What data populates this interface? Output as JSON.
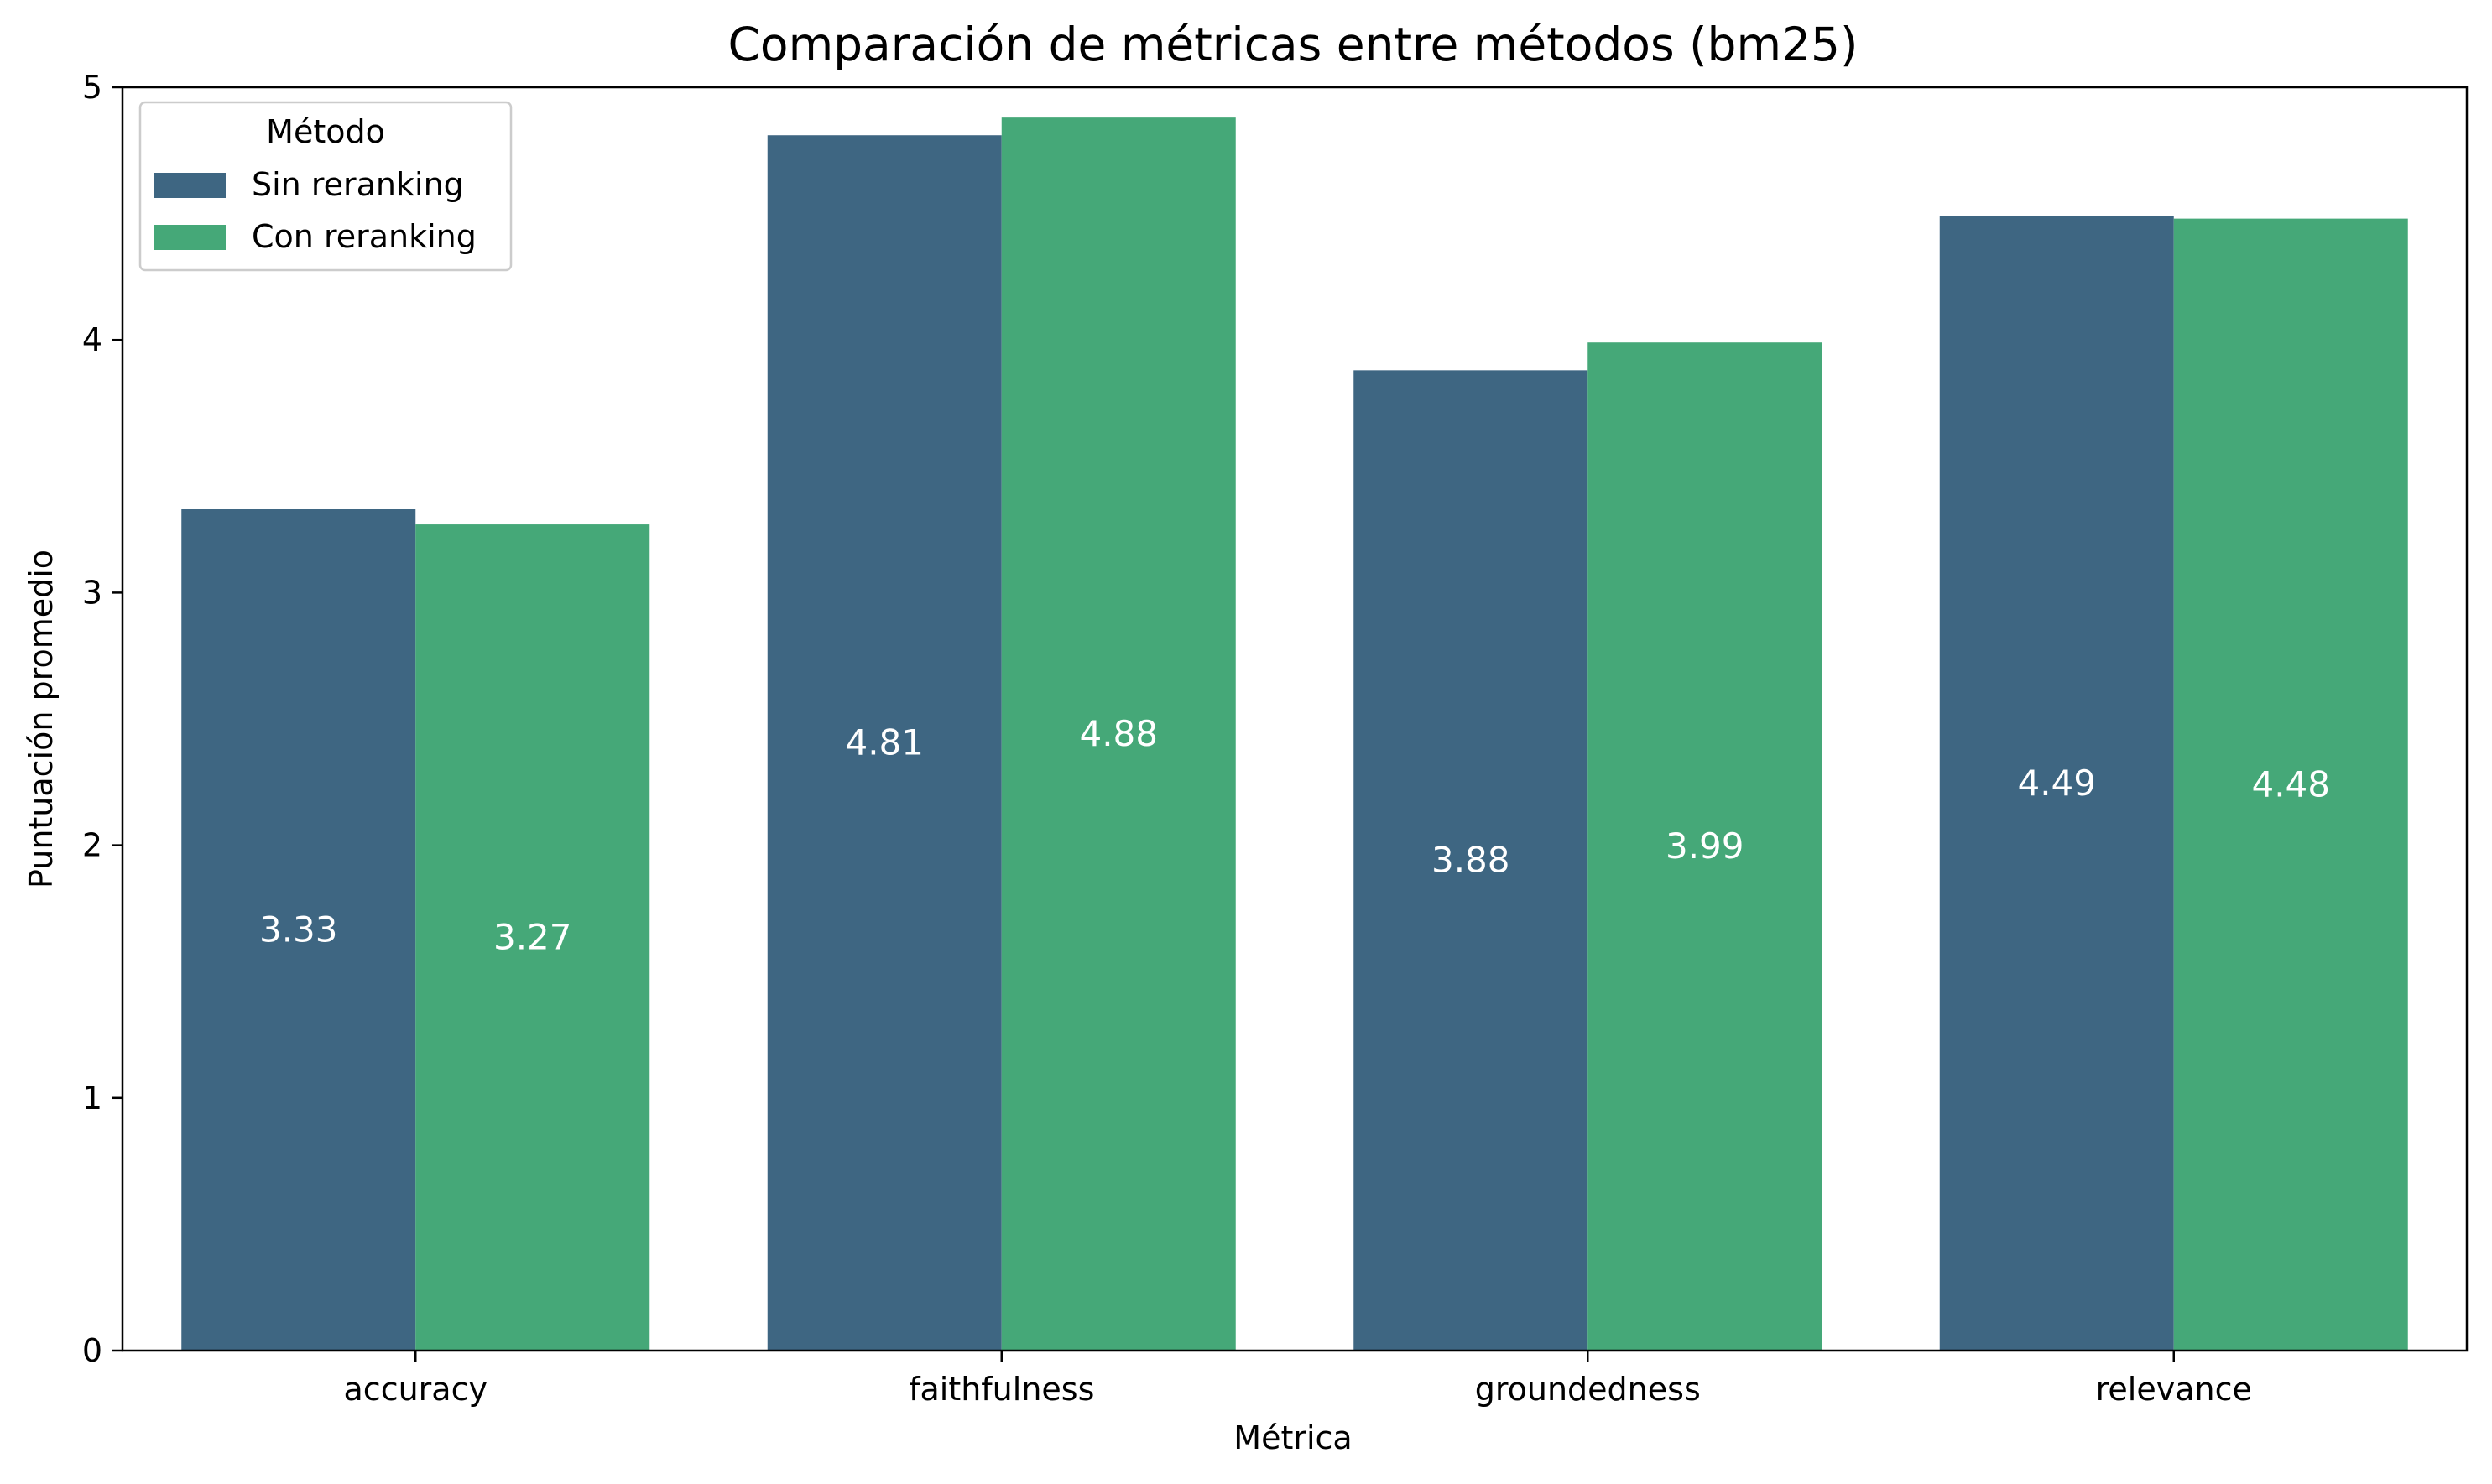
{
  "chart_data": {
    "type": "bar",
    "title": "Comparación de métricas entre métodos (bm25)",
    "xlabel": "Métrica",
    "ylabel": "Puntuación promedio",
    "categories": [
      "accuracy",
      "faithfulness",
      "groundedness",
      "relevance"
    ],
    "series": [
      {
        "name": "Sin reranking",
        "color": "#3e6682",
        "values": [
          3.33,
          4.81,
          3.88,
          4.49
        ],
        "labels": [
          "3.33",
          "4.81",
          "3.88",
          "4.49"
        ]
      },
      {
        "name": "Con reranking",
        "color": "#45a878",
        "values": [
          3.27,
          4.88,
          3.99,
          4.48
        ],
        "labels": [
          "3.27",
          "4.88",
          "3.99",
          "4.48"
        ]
      }
    ],
    "ylim": [
      0,
      5
    ],
    "yticks": [
      0,
      1,
      2,
      3,
      4,
      5
    ],
    "ytick_labels": [
      "0",
      "1",
      "2",
      "3",
      "4",
      "5"
    ],
    "grid": false,
    "legend": {
      "title": "Método",
      "position": "top-left"
    },
    "data_labels_color": "#ffffff"
  }
}
